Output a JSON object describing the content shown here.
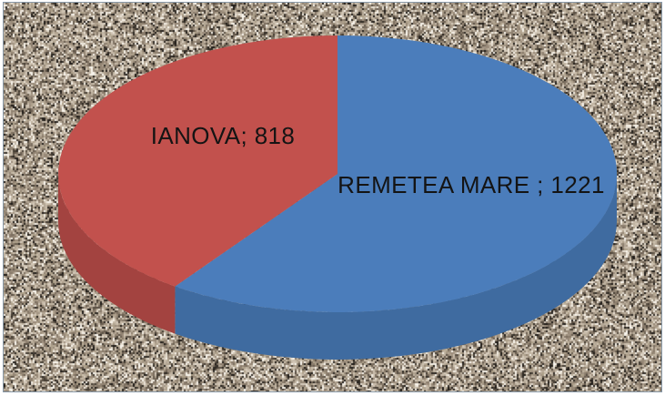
{
  "chart_data": {
    "type": "pie",
    "title": "",
    "labels": [
      "REMETEA MARE",
      "IANOVA"
    ],
    "values": [
      1221,
      818
    ],
    "display_labels": [
      "REMETEA MARE ; 1221",
      "IANOVA; 818"
    ],
    "colors": [
      "#4b7dbb",
      "#c2514d"
    ],
    "side_colors": [
      "#3f6ba0",
      "#a34340"
    ],
    "start_angle_deg": -90,
    "direction": "clockwise",
    "is_3d": true,
    "legend": "none",
    "label_text_color": "#141414"
  },
  "background": {
    "page_color": "#ffffff",
    "frame_border_color": "#8a9aa9",
    "noise_colors": [
      "#a39584",
      "#998a79",
      "#8f8170",
      "#b4a795",
      "#c3b7a5",
      "#d5cabb",
      "#e8e0d3",
      "#f5f0e6",
      "#7c6f60",
      "#6a5e50",
      "#584e42",
      "#453d33",
      "#2e2923",
      "#c9bcab",
      "#ada089",
      "#bfb3a0",
      "#968876",
      "#887a6a",
      "#faf6ee",
      "#1f1b17",
      "#b0a28e",
      "#cec2b0"
    ]
  }
}
